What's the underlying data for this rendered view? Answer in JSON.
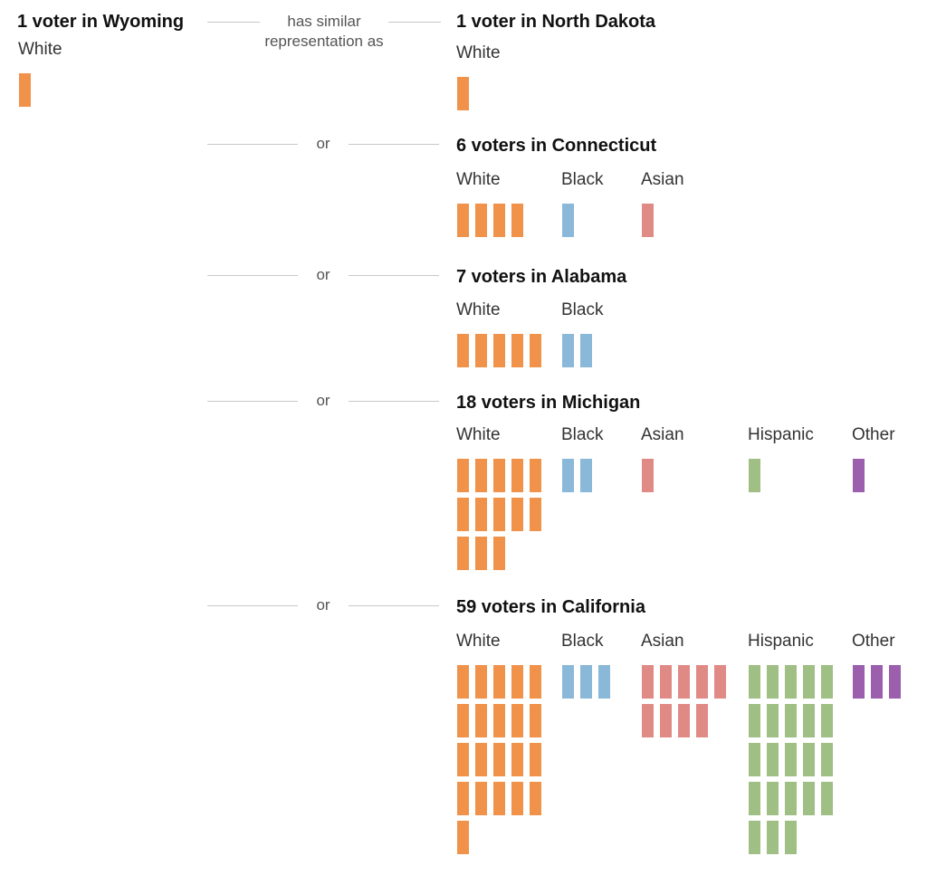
{
  "chart_data": {
    "type": "unit-chart",
    "source": {
      "title": "1 voter in Wyoming",
      "groups": [
        {
          "label": "White",
          "count": 1
        }
      ]
    },
    "connector_first": "has similar representation as",
    "connector_or": "or",
    "colors": {
      "White": "#f0924a",
      "Black": "#8ab8d8",
      "Asian": "#e08a86",
      "Hispanic": "#9fbf84",
      "Other": "#9b5fad"
    },
    "rows": [
      {
        "title": "1 voter in North Dakota",
        "groups": [
          {
            "label": "White",
            "count": 1
          }
        ]
      },
      {
        "title": "6 voters in Connecticut",
        "groups": [
          {
            "label": "White",
            "count": 4
          },
          {
            "label": "Black",
            "count": 1
          },
          {
            "label": "Asian",
            "count": 1
          }
        ]
      },
      {
        "title": "7 voters in Alabama",
        "groups": [
          {
            "label": "White",
            "count": 5
          },
          {
            "label": "Black",
            "count": 2
          }
        ]
      },
      {
        "title": "18 voters in Michigan",
        "groups": [
          {
            "label": "White",
            "count": 13
          },
          {
            "label": "Black",
            "count": 2
          },
          {
            "label": "Asian",
            "count": 1
          },
          {
            "label": "Hispanic",
            "count": 1
          },
          {
            "label": "Other",
            "count": 1
          }
        ]
      },
      {
        "title": "59 voters in California",
        "groups": [
          {
            "label": "White",
            "count": 21
          },
          {
            "label": "Black",
            "count": 3
          },
          {
            "label": "Asian",
            "count": 9
          },
          {
            "label": "Hispanic",
            "count": 23
          },
          {
            "label": "Other",
            "count": 3
          }
        ]
      }
    ]
  }
}
